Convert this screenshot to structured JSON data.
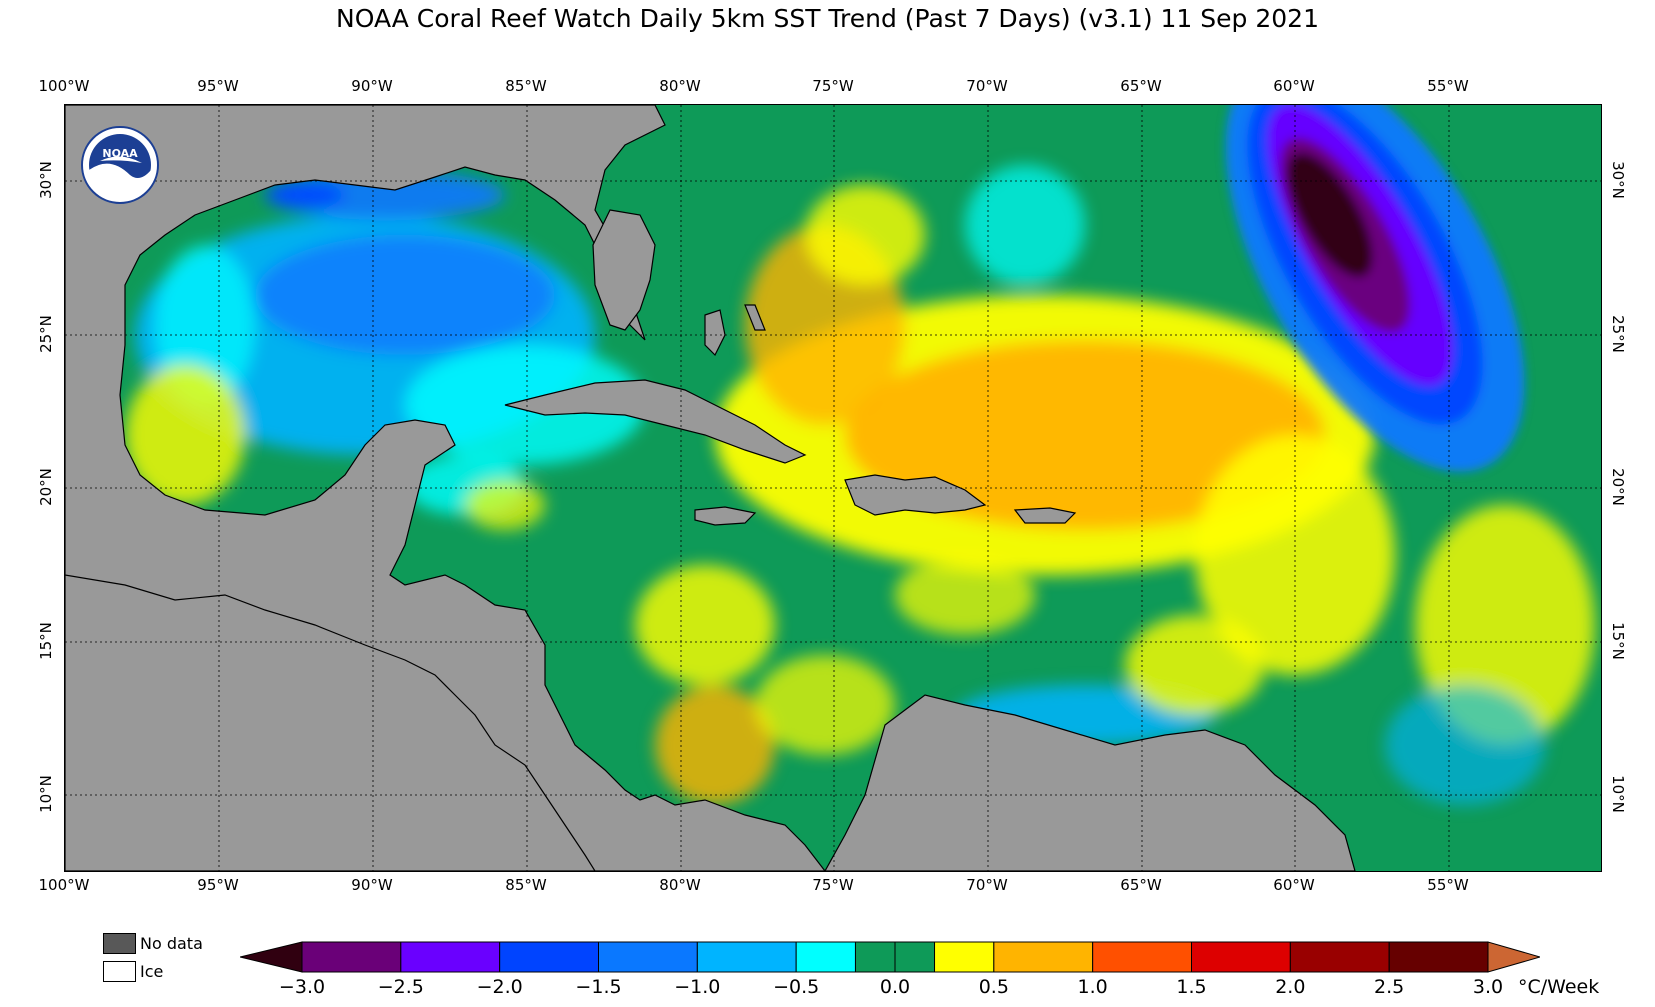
{
  "title": "NOAA Coral Reef Watch Daily 5km SST Trend (Past 7 Days)  (v3.1)   11 Sep 2021",
  "map": {
    "lon_range": [
      -100,
      -50
    ],
    "lat_range": [
      8,
      32
    ],
    "lon_ticks": [
      "100°W",
      "95°W",
      "90°W",
      "85°W",
      "80°W",
      "75°W",
      "70°W",
      "65°W",
      "60°W",
      "55°W"
    ],
    "lat_ticks": [
      "30°N",
      "25°N",
      "20°N",
      "15°N",
      "10°N"
    ],
    "logo": "noaa-logo"
  },
  "legend": {
    "no_data_label": "No data",
    "ice_label": "Ice",
    "no_data_color": "#585858",
    "ice_color": "#ffffff",
    "land_color": "#999999"
  },
  "colorbar": {
    "units": "°C/Week",
    "tick_labels": [
      "−3.0",
      "−2.5",
      "−2.0",
      "−1.5",
      "−1.0",
      "−0.5",
      "0.0",
      "0.5",
      "1.0",
      "1.5",
      "2.0",
      "2.5",
      "3.0"
    ],
    "under_color": "#300010",
    "over_color": "#cc6633",
    "bins": [
      {
        "from": -3.0,
        "to": -2.5,
        "color": "#6a0078"
      },
      {
        "from": -2.5,
        "to": -2.0,
        "color": "#6a00ff"
      },
      {
        "from": -2.0,
        "to": -1.5,
        "color": "#0044ff"
      },
      {
        "from": -1.5,
        "to": -1.0,
        "color": "#0a78ff"
      },
      {
        "from": -1.0,
        "to": -0.5,
        "color": "#00b4ff"
      },
      {
        "from": -0.5,
        "to": -0.2,
        "color": "#00ffff"
      },
      {
        "from": -0.2,
        "to": 0.0,
        "color": "#0e9a58"
      },
      {
        "from": 0.0,
        "to": 0.2,
        "color": "#0e9a58"
      },
      {
        "from": 0.2,
        "to": 0.5,
        "color": "#ffff00"
      },
      {
        "from": 0.5,
        "to": 1.0,
        "color": "#ffb400"
      },
      {
        "from": 1.0,
        "to": 1.5,
        "color": "#ff5000"
      },
      {
        "from": 1.5,
        "to": 2.0,
        "color": "#dd0000"
      },
      {
        "from": 2.0,
        "to": 2.5,
        "color": "#990000"
      },
      {
        "from": 2.5,
        "to": 3.0,
        "color": "#660000"
      }
    ]
  }
}
